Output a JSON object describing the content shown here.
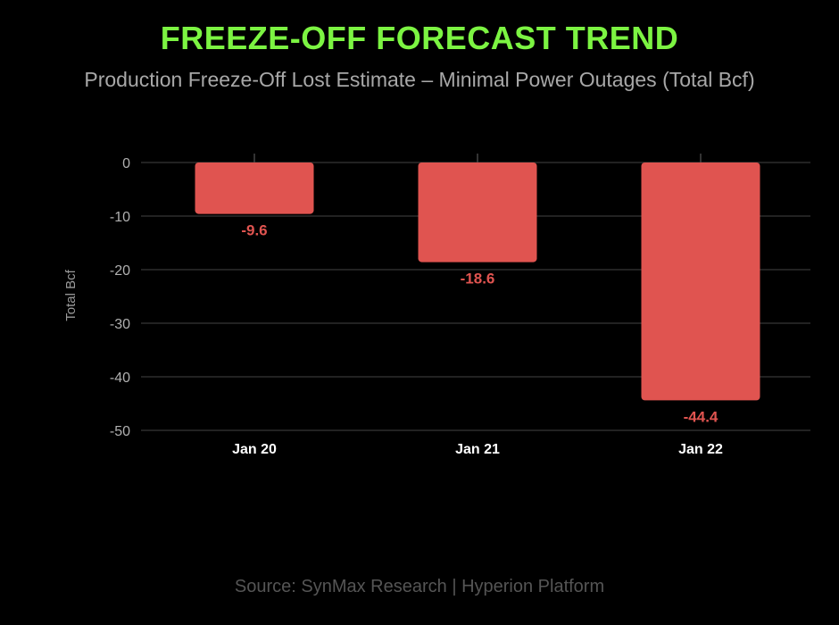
{
  "colors": {
    "title": "#7cf442",
    "bar": "#e05450",
    "data_label": "#e05450",
    "grid": "#2e2e2e",
    "background": "#000000"
  },
  "source": "Source: SynMax Research | Hyperion Platform",
  "chart_data": {
    "type": "bar",
    "title": "FREEZE-OFF FORECAST TREND",
    "subtitle": "Production Freeze-Off Lost Estimate – Minimal Power Outages (Total Bcf)",
    "xlabel": "",
    "ylabel": "Total Bcf",
    "categories": [
      "Jan 20",
      "Jan 21",
      "Jan 22"
    ],
    "values": [
      -9.6,
      -18.6,
      -44.4
    ],
    "data_labels": [
      "-9.6",
      "-18.6",
      "-44.4"
    ],
    "ylim": [
      -50,
      0
    ],
    "yticks": [
      0,
      -10,
      -20,
      -30,
      -40,
      -50
    ],
    "ytick_labels": [
      "0",
      "-10",
      "-20",
      "-30",
      "-40",
      "-50"
    ],
    "grid": true,
    "legend": "none"
  }
}
